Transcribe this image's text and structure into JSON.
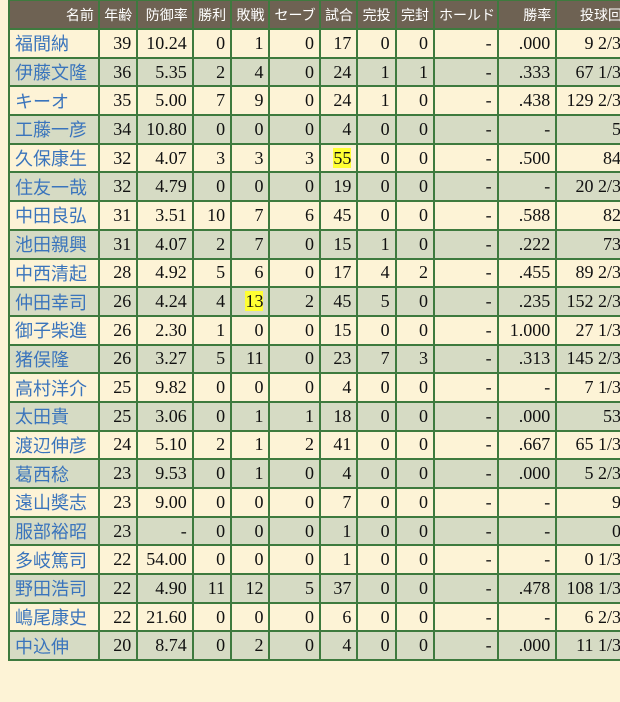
{
  "colors": {
    "header": "#6e6253",
    "row_odd": "#fdf3d6",
    "row_even": "#d6dbc4",
    "border": "#3e7a3e",
    "name_link": "#3a74bc",
    "highlight": "#ffff33"
  },
  "headers": [
    "名前",
    "年齢",
    "防御率",
    "勝利",
    "敗戦",
    "セーブ",
    "試合",
    "完投",
    "完封",
    "ホールド",
    "勝率",
    "投球回"
  ],
  "rows": [
    [
      "福間納",
      "39",
      "10.24",
      "0",
      "1",
      "0",
      "17",
      "0",
      "0",
      "-",
      ".000",
      "9 2/3"
    ],
    [
      "伊藤文隆",
      "36",
      "5.35",
      "2",
      "4",
      "0",
      "24",
      "1",
      "1",
      "-",
      ".333",
      "67 1/3"
    ],
    [
      "キーオ",
      "35",
      "5.00",
      "7",
      "9",
      "0",
      "24",
      "1",
      "0",
      "-",
      ".438",
      "129 2/3"
    ],
    [
      "工藤一彦",
      "34",
      "10.80",
      "0",
      "0",
      "0",
      "4",
      "0",
      "0",
      "-",
      "-",
      "5"
    ],
    [
      "久保康生",
      "32",
      "4.07",
      "3",
      "3",
      "3",
      "55",
      "0",
      "0",
      "-",
      ".500",
      "84"
    ],
    [
      "住友一哉",
      "32",
      "4.79",
      "0",
      "0",
      "0",
      "19",
      "0",
      "0",
      "-",
      "-",
      "20 2/3"
    ],
    [
      "中田良弘",
      "31",
      "3.51",
      "10",
      "7",
      "6",
      "45",
      "0",
      "0",
      "-",
      ".588",
      "82"
    ],
    [
      "池田親興",
      "31",
      "4.07",
      "2",
      "7",
      "0",
      "15",
      "1",
      "0",
      "-",
      ".222",
      "73"
    ],
    [
      "中西清起",
      "28",
      "4.92",
      "5",
      "6",
      "0",
      "17",
      "4",
      "2",
      "-",
      ".455",
      "89 2/3"
    ],
    [
      "仲田幸司",
      "26",
      "4.24",
      "4",
      "13",
      "2",
      "45",
      "5",
      "0",
      "-",
      ".235",
      "152 2/3"
    ],
    [
      "御子柴進",
      "26",
      "2.30",
      "1",
      "0",
      "0",
      "15",
      "0",
      "0",
      "-",
      "1.000",
      "27 1/3"
    ],
    [
      "猪俣隆",
      "26",
      "3.27",
      "5",
      "11",
      "0",
      "23",
      "7",
      "3",
      "-",
      ".313",
      "145 2/3"
    ],
    [
      "高村洋介",
      "25",
      "9.82",
      "0",
      "0",
      "0",
      "4",
      "0",
      "0",
      "-",
      "-",
      "7 1/3"
    ],
    [
      "太田貴",
      "25",
      "3.06",
      "0",
      "1",
      "1",
      "18",
      "0",
      "0",
      "-",
      ".000",
      "53"
    ],
    [
      "渡辺伸彦",
      "24",
      "5.10",
      "2",
      "1",
      "2",
      "41",
      "0",
      "0",
      "-",
      ".667",
      "65 1/3"
    ],
    [
      "葛西稔",
      "23",
      "9.53",
      "0",
      "1",
      "0",
      "4",
      "0",
      "0",
      "-",
      ".000",
      "5 2/3"
    ],
    [
      "遠山奬志",
      "23",
      "9.00",
      "0",
      "0",
      "0",
      "7",
      "0",
      "0",
      "-",
      "-",
      "9"
    ],
    [
      "服部裕昭",
      "23",
      "-",
      "0",
      "0",
      "0",
      "1",
      "0",
      "0",
      "-",
      "-",
      "0"
    ],
    [
      "多岐篤司",
      "22",
      "54.00",
      "0",
      "0",
      "0",
      "1",
      "0",
      "0",
      "-",
      "-",
      "0 1/3"
    ],
    [
      "野田浩司",
      "22",
      "4.90",
      "11",
      "12",
      "5",
      "37",
      "0",
      "0",
      "-",
      ".478",
      "108 1/3"
    ],
    [
      "嶋尾康史",
      "22",
      "21.60",
      "0",
      "0",
      "0",
      "6",
      "0",
      "0",
      "-",
      "-",
      "6 2/3"
    ],
    [
      "中込伸",
      "20",
      "8.74",
      "0",
      "2",
      "0",
      "4",
      "0",
      "0",
      "-",
      ".000",
      "11 1/3"
    ]
  ],
  "highlights": [
    {
      "row": 4,
      "col": 6
    },
    {
      "row": 9,
      "col": 4
    }
  ]
}
